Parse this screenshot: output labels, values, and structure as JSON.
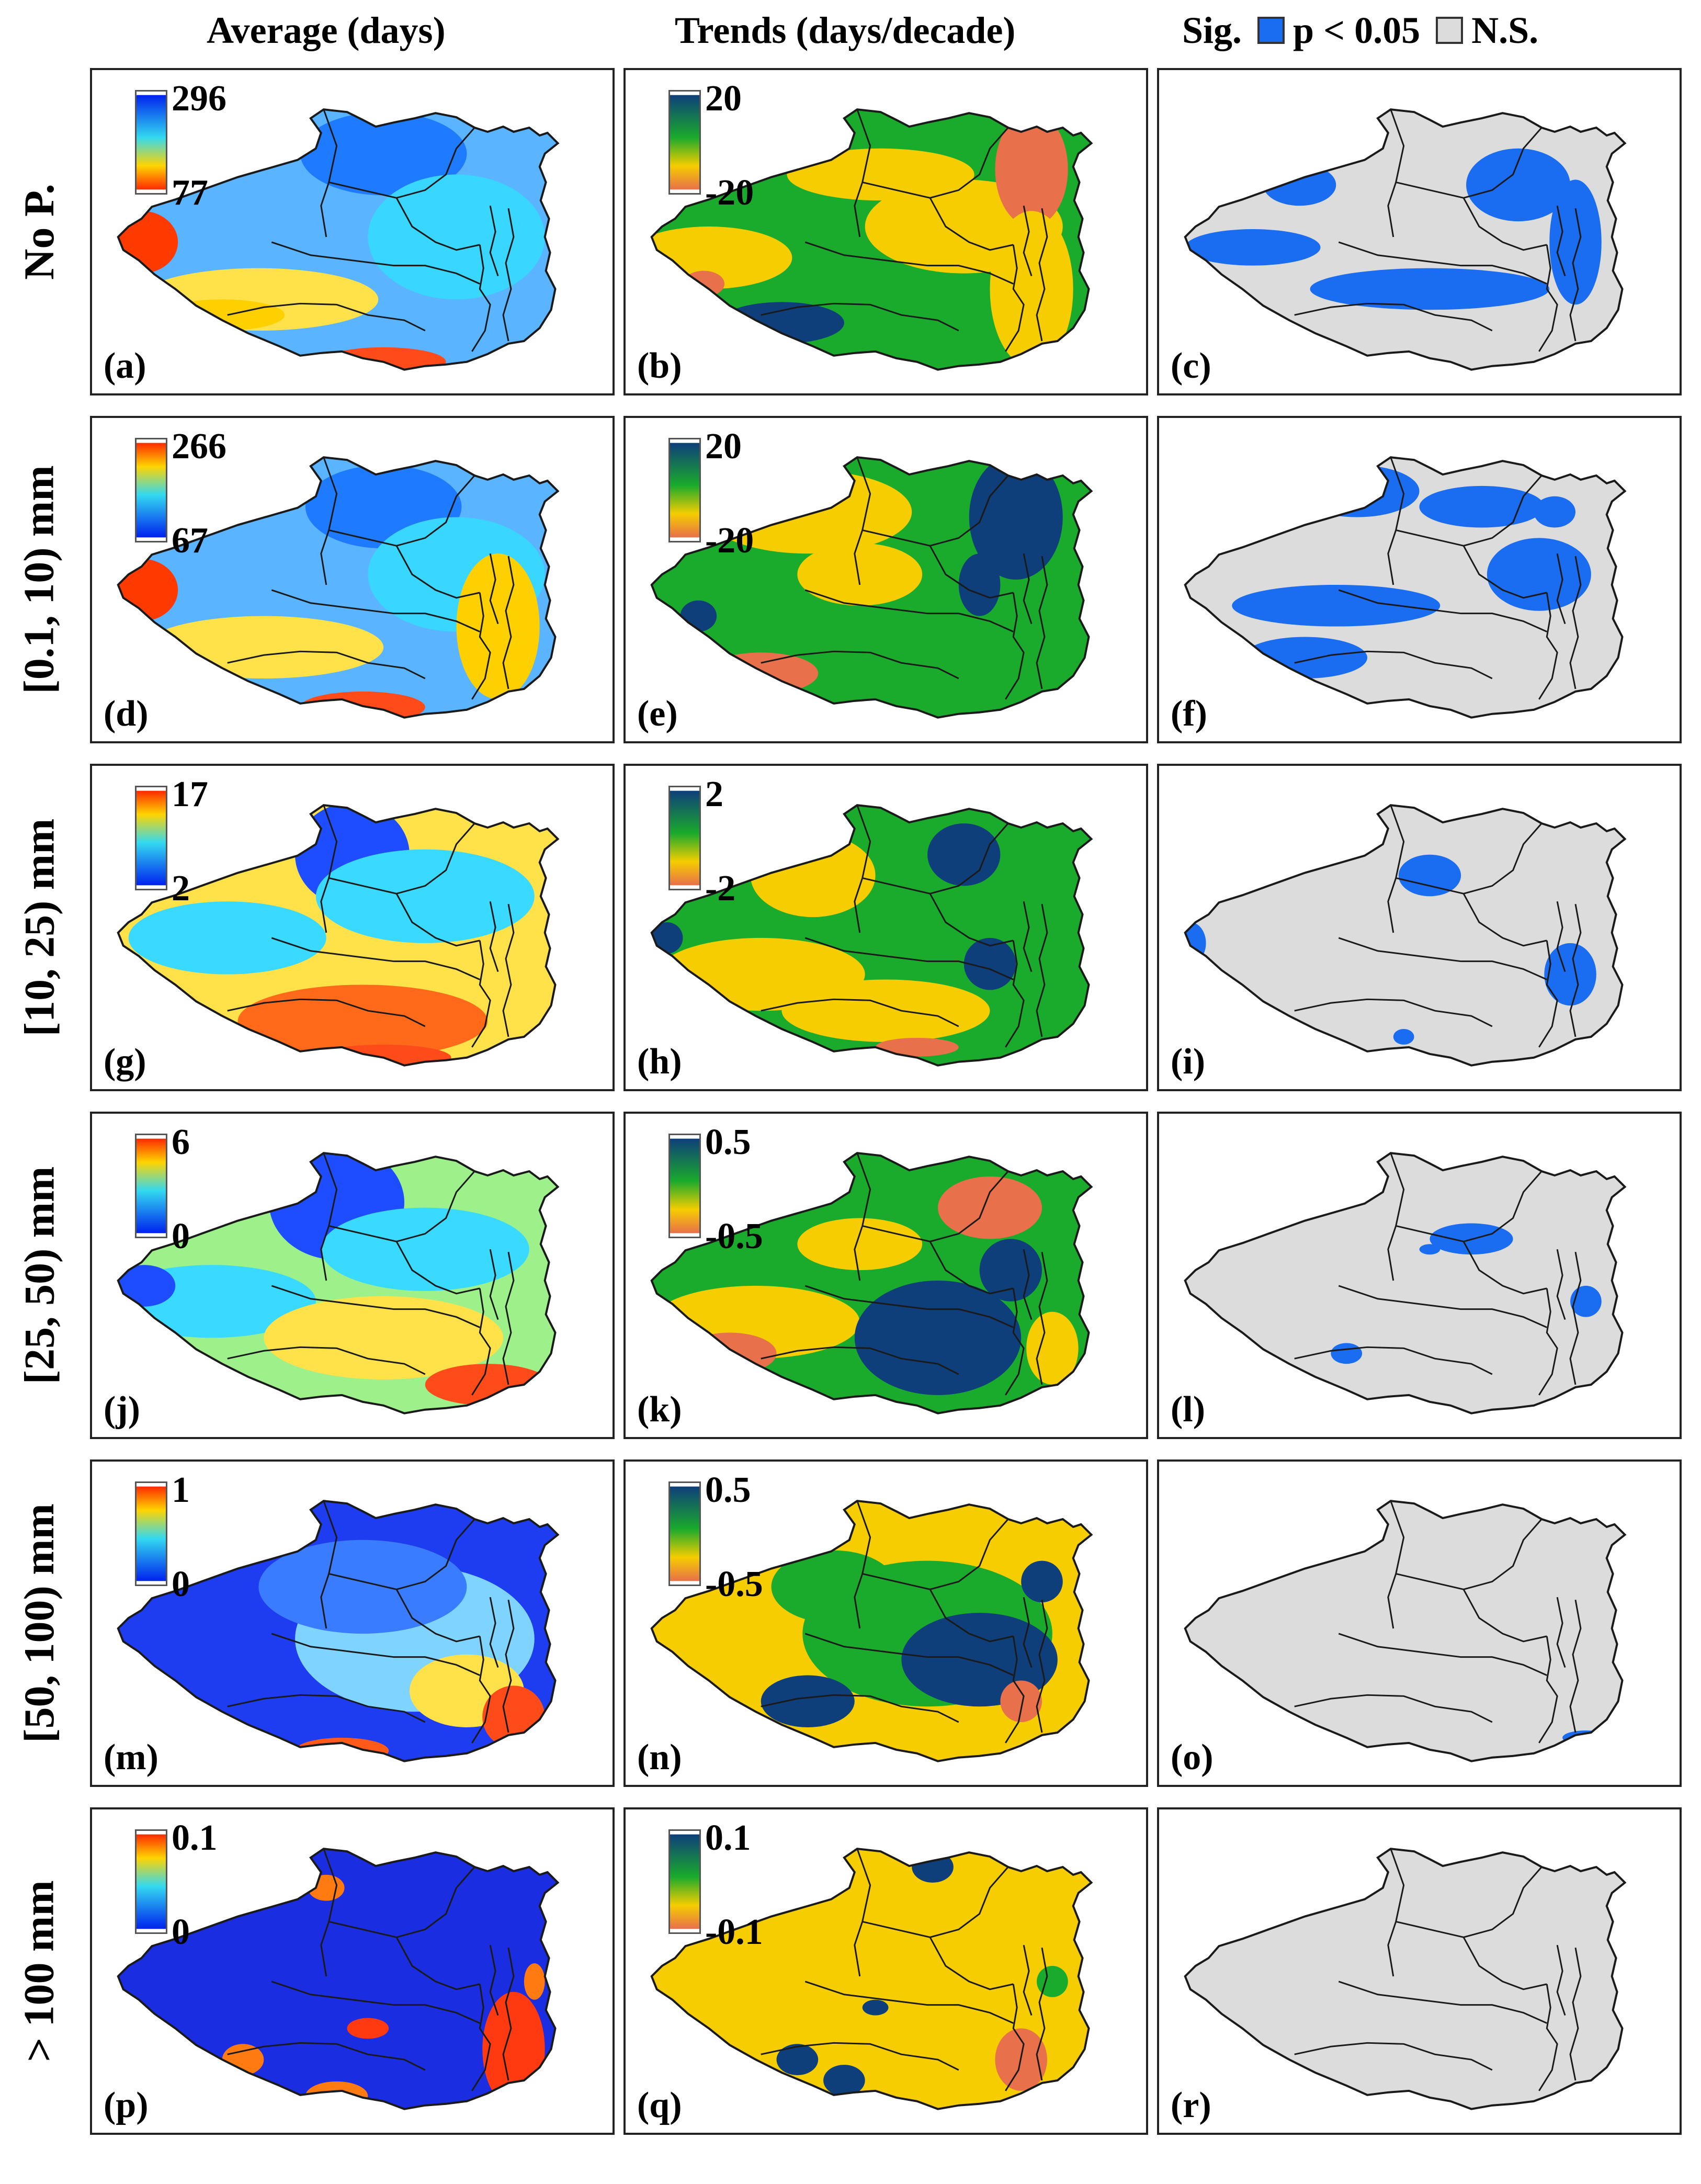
{
  "column_headers": {
    "average": "Average (days)",
    "trends": "Trends (days/decade)",
    "sig_label": "Sig.",
    "sig_entry": "p < 0.05",
    "ns_entry": "N.S."
  },
  "colors": {
    "sig": "#1a6cf0",
    "ns": "#dcdcdc",
    "outline": "#1a1a1a",
    "trend_pos": "#0e3f7a",
    "trend_mid": "#1aaa2c",
    "trend_neg_small": "#f5cd00",
    "trend_neg": "#e8704a",
    "avg_high": "#ff2a00",
    "avg_low": "#0022ee"
  },
  "rows": [
    {
      "label": "No P.",
      "average": {
        "panel": "(a)",
        "cbar_max": "296",
        "cbar_min": "77",
        "cbar_style": "rev"
      },
      "trend": {
        "panel": "(b)",
        "cbar_max": "20",
        "cbar_min": "-20"
      },
      "sig": {
        "panel": "(c)"
      }
    },
    {
      "label": "[0.1, 10)  mm",
      "average": {
        "panel": "(d)",
        "cbar_max": "266",
        "cbar_min": "67",
        "cbar_style": "norm"
      },
      "trend": {
        "panel": "(e)",
        "cbar_max": "20",
        "cbar_min": "-20"
      },
      "sig": {
        "panel": "(f)"
      }
    },
    {
      "label": "[10, 25) mm",
      "average": {
        "panel": "(g)",
        "cbar_max": "17",
        "cbar_min": "2",
        "cbar_style": "norm"
      },
      "trend": {
        "panel": "(h)",
        "cbar_max": "2",
        "cbar_min": "-2"
      },
      "sig": {
        "panel": "(i)"
      }
    },
    {
      "label": "[25, 50) mm",
      "average": {
        "panel": "(j)",
        "cbar_max": "6",
        "cbar_min": "0",
        "cbar_style": "norm"
      },
      "trend": {
        "panel": "(k)",
        "cbar_max": "0.5",
        "cbar_min": "-0.5"
      },
      "sig": {
        "panel": "(l)"
      }
    },
    {
      "label": "[50, 100) mm",
      "average": {
        "panel": "(m)",
        "cbar_max": "1",
        "cbar_min": "0",
        "cbar_style": "norm"
      },
      "trend": {
        "panel": "(n)",
        "cbar_max": "0.5",
        "cbar_min": "-0.5"
      },
      "sig": {
        "panel": "(o)"
      }
    },
    {
      "label": "> 100 mm",
      "average": {
        "panel": "(p)",
        "cbar_max": "0.1",
        "cbar_min": "0",
        "cbar_style": "norm"
      },
      "trend": {
        "panel": "(q)",
        "cbar_max": "0.1",
        "cbar_min": "-0.1"
      },
      "sig": {
        "panel": "(r)"
      }
    }
  ]
}
